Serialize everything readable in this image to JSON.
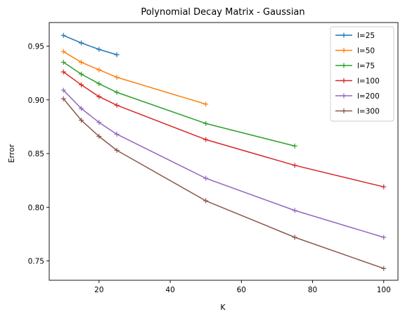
{
  "chart_data": {
    "type": "line",
    "title": "Polynomial Decay Matrix - Gaussian",
    "xlabel": "K",
    "ylabel": "Error",
    "xlim": [
      6,
      104
    ],
    "ylim": [
      0.732,
      0.972
    ],
    "xticks": [
      20,
      40,
      60,
      80,
      100
    ],
    "yticks": [
      0.75,
      0.8,
      0.85,
      0.9,
      0.95
    ],
    "xtick_labels": [
      "20",
      "40",
      "60",
      "80",
      "100"
    ],
    "ytick_labels": [
      "0.75",
      "0.80",
      "0.85",
      "0.90",
      "0.95"
    ],
    "grid": false,
    "legend_position": "top-right",
    "marker": "+",
    "series": [
      {
        "name": "l=25",
        "color": "#1f77b4",
        "x": [
          10,
          15,
          20,
          25
        ],
        "y": [
          0.96,
          0.953,
          0.947,
          0.942
        ]
      },
      {
        "name": "l=50",
        "color": "#ff7f0e",
        "x": [
          10,
          15,
          20,
          25,
          50
        ],
        "y": [
          0.945,
          0.935,
          0.928,
          0.921,
          0.896
        ]
      },
      {
        "name": "l=75",
        "color": "#2ca02c",
        "x": [
          10,
          15,
          20,
          25,
          50,
          75
        ],
        "y": [
          0.935,
          0.924,
          0.915,
          0.907,
          0.878,
          0.857
        ]
      },
      {
        "name": "l=100",
        "color": "#d62728",
        "x": [
          10,
          15,
          20,
          25,
          50,
          75,
          100
        ],
        "y": [
          0.926,
          0.914,
          0.903,
          0.895,
          0.863,
          0.839,
          0.819
        ]
      },
      {
        "name": "l=200",
        "color": "#9467bd",
        "x": [
          10,
          15,
          20,
          25,
          50,
          75,
          100
        ],
        "y": [
          0.909,
          0.892,
          0.879,
          0.868,
          0.827,
          0.797,
          0.772
        ]
      },
      {
        "name": "l=300",
        "color": "#8c564b",
        "x": [
          10,
          15,
          20,
          25,
          50,
          75,
          100
        ],
        "y": [
          0.901,
          0.881,
          0.866,
          0.853,
          0.806,
          0.772,
          0.743
        ]
      }
    ]
  }
}
